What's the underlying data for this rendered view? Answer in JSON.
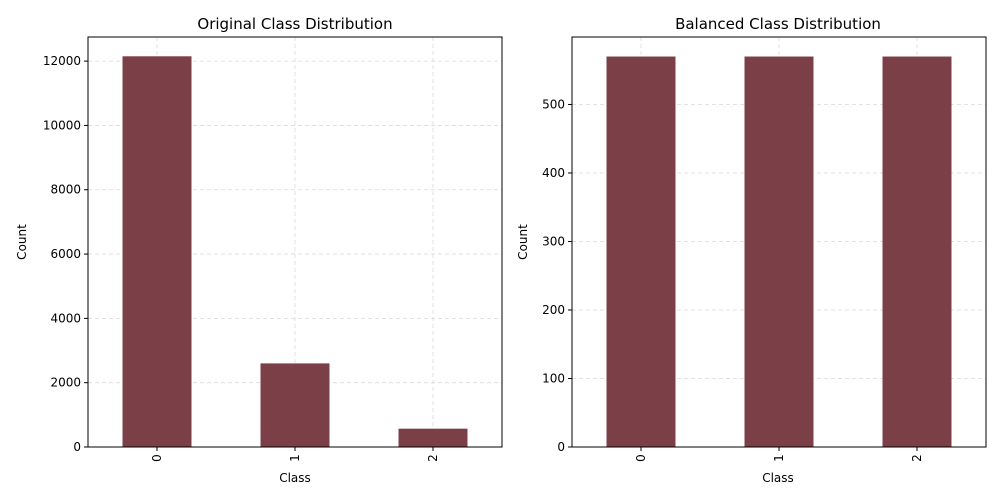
{
  "chart_data": [
    {
      "type": "bar",
      "title": "Original Class Distribution",
      "xlabel": "Class",
      "ylabel": "Count",
      "categories": [
        "0",
        "1",
        "2"
      ],
      "values": [
        12150,
        2600,
        570
      ],
      "ylim": [
        0,
        12750
      ],
      "yticks": [
        "0",
        "2000",
        "4000",
        "6000",
        "8000",
        "10000",
        "12000"
      ],
      "grid": true,
      "bar_color": "#7b4047"
    },
    {
      "type": "bar",
      "title": "Balanced Class Distribution",
      "xlabel": "Class",
      "ylabel": "Count",
      "categories": [
        "0",
        "1",
        "2"
      ],
      "values": [
        570,
        570,
        570
      ],
      "ylim": [
        0,
        598.5
      ],
      "yticks": [
        "0",
        "100",
        "200",
        "300",
        "400",
        "500"
      ],
      "grid": true,
      "bar_color": "#7b4047"
    }
  ]
}
